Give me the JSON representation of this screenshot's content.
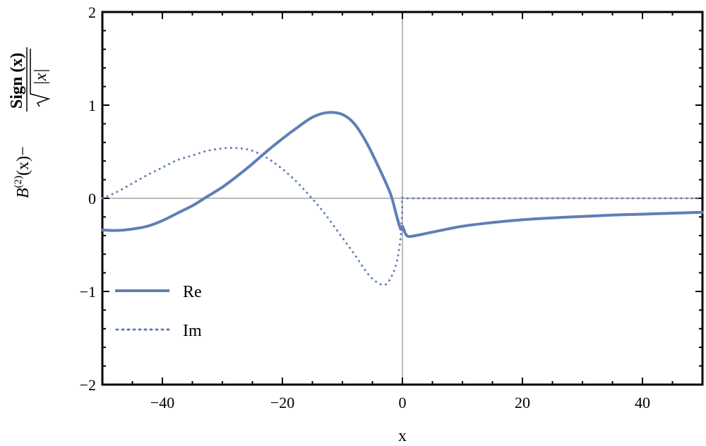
{
  "chart_data": {
    "type": "line",
    "xlabel": "x",
    "ylabel": {
      "numerator": "Sign (x)",
      "denominator": "|x|",
      "prefix_B": "B",
      "prefix_sup": "(2)",
      "prefix_arg": "(x)",
      "minus": "−"
    },
    "xlim": [
      -50,
      50
    ],
    "ylim": [
      -2,
      2
    ],
    "x_ticks": [
      -40,
      -20,
      0,
      20,
      40
    ],
    "x_tick_labels": [
      "−40",
      "−20",
      "0",
      "20",
      "40"
    ],
    "y_ticks": [
      -2,
      -1,
      0,
      1,
      2
    ],
    "y_tick_labels": [
      "−2",
      "−1",
      "0",
      "1",
      "2"
    ],
    "grid": false,
    "zero_lines": true,
    "legend_position": "bottom-left",
    "series_color": "#5f7fb5",
    "series": [
      {
        "name": "Re",
        "style": "solid",
        "points": [
          [
            -50,
            -0.34
          ],
          [
            -47.5,
            -0.345
          ],
          [
            -45,
            -0.33
          ],
          [
            -42.5,
            -0.3
          ],
          [
            -40,
            -0.24
          ],
          [
            -37.5,
            -0.16
          ],
          [
            -35,
            -0.08
          ],
          [
            -33,
            0.0
          ],
          [
            -30,
            0.12
          ],
          [
            -27.5,
            0.24
          ],
          [
            -25,
            0.37
          ],
          [
            -22.5,
            0.51
          ],
          [
            -20,
            0.64
          ],
          [
            -17.5,
            0.76
          ],
          [
            -15,
            0.87
          ],
          [
            -12.5,
            0.92
          ],
          [
            -10,
            0.9
          ],
          [
            -8,
            0.8
          ],
          [
            -6,
            0.6
          ],
          [
            -4,
            0.34
          ],
          [
            -2,
            0.05
          ],
          [
            -1,
            -0.18
          ],
          [
            -0.3,
            -0.33
          ],
          [
            0,
            -0.3
          ],
          [
            0.2,
            -0.33
          ],
          [
            0.6,
            -0.39
          ],
          [
            1.2,
            -0.41
          ],
          [
            3,
            -0.39
          ],
          [
            6,
            -0.35
          ],
          [
            10,
            -0.3
          ],
          [
            15,
            -0.26
          ],
          [
            20,
            -0.23
          ],
          [
            25,
            -0.21
          ],
          [
            30,
            -0.195
          ],
          [
            35,
            -0.18
          ],
          [
            40,
            -0.17
          ],
          [
            45,
            -0.16
          ],
          [
            50,
            -0.15
          ]
        ]
      },
      {
        "name": "Im",
        "style": "dotted",
        "points": [
          [
            -50,
            0.0
          ],
          [
            -47.5,
            0.07
          ],
          [
            -45,
            0.16
          ],
          [
            -42.5,
            0.25
          ],
          [
            -40,
            0.33
          ],
          [
            -37.5,
            0.41
          ],
          [
            -35,
            0.46
          ],
          [
            -32.5,
            0.51
          ],
          [
            -30,
            0.535
          ],
          [
            -28,
            0.54
          ],
          [
            -25.5,
            0.52
          ],
          [
            -23,
            0.45
          ],
          [
            -20.5,
            0.34
          ],
          [
            -18,
            0.2
          ],
          [
            -15.5,
            0.03
          ],
          [
            -13,
            -0.16
          ],
          [
            -10.5,
            -0.38
          ],
          [
            -8,
            -0.6
          ],
          [
            -6,
            -0.79
          ],
          [
            -4.5,
            -0.89
          ],
          [
            -3,
            -0.93
          ],
          [
            -2,
            -0.86
          ],
          [
            -1,
            -0.7
          ],
          [
            -0.3,
            -0.42
          ],
          [
            -0.05,
            -0.15
          ],
          [
            0,
            0.0
          ],
          [
            1,
            0.0
          ],
          [
            10,
            0.0
          ],
          [
            20,
            0.0
          ],
          [
            30,
            0.0
          ],
          [
            40,
            0.0
          ],
          [
            50,
            0.0
          ]
        ]
      }
    ]
  }
}
